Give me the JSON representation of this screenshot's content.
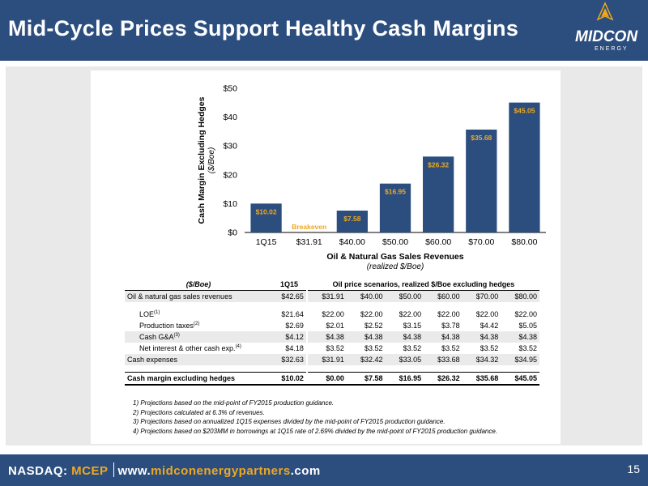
{
  "header": {
    "title": "Mid-Cycle Prices Support Healthy Cash Margins"
  },
  "logo": {
    "word": "MIDCON",
    "sub": "ENERGY"
  },
  "chart_data": {
    "type": "bar",
    "title": "",
    "ylabel": "Cash Margin Excluding Hedges",
    "ylabel_units": "($/Boe)",
    "xlabel": "Oil & Natural Gas Sales Revenues",
    "xlabel_units": "(realized $/Boe)",
    "categories": [
      "1Q15",
      "$31.91",
      "$40.00",
      "$50.00",
      "$60.00",
      "$70.00",
      "$80.00"
    ],
    "values": [
      10.02,
      0,
      7.58,
      16.95,
      26.32,
      35.68,
      45.05
    ],
    "value_labels": [
      "$10.02",
      "Breakeven",
      "$7.58",
      "$16.95",
      "$26.32",
      "$35.68",
      "$45.05"
    ],
    "ylim": [
      0,
      50
    ],
    "yticks": [
      "$0",
      "$10",
      "$20",
      "$30",
      "$40",
      "$50"
    ],
    "grid": false,
    "colors": {
      "bar": "#2c4e7f",
      "label": "#f0a81e"
    }
  },
  "table": {
    "col0_header": "($/Boe)",
    "col1_header": "1Q15",
    "scenario_header": "Oil price scenarios, realized $/Boe excluding hedges",
    "rows": [
      {
        "label": "Oil & natural gas sales revenues",
        "sup": "",
        "values": [
          "$42.65",
          "$31.91",
          "$40.00",
          "$50.00",
          "$60.00",
          "$70.00",
          "$80.00"
        ]
      },
      {
        "label": "LOE",
        "sup": "(1)",
        "values": [
          "$21.64",
          "$22.00",
          "$22.00",
          "$22.00",
          "$22.00",
          "$22.00",
          "$22.00"
        ]
      },
      {
        "label": "Production taxes",
        "sup": "(2)",
        "values": [
          "$2.69",
          "$2.01",
          "$2.52",
          "$3.15",
          "$3.78",
          "$4.42",
          "$5.05"
        ]
      },
      {
        "label": "Cash G&A",
        "sup": "(3)",
        "values": [
          "$4.12",
          "$4.38",
          "$4.38",
          "$4.38",
          "$4.38",
          "$4.38",
          "$4.38"
        ]
      },
      {
        "label": "Net interest & other cash exp.",
        "sup": "(4)",
        "values": [
          "$4.18",
          "$3.52",
          "$3.52",
          "$3.52",
          "$3.52",
          "$3.52",
          "$3.52"
        ]
      },
      {
        "label": "Cash expenses",
        "sup": "",
        "values": [
          "$32.63",
          "$31.91",
          "$32.42",
          "$33.05",
          "$33.68",
          "$34.32",
          "$34.95"
        ]
      },
      {
        "label": "Cash margin excluding hedges",
        "sup": "",
        "values": [
          "$10.02",
          "$0.00",
          "$7.58",
          "$16.95",
          "$26.32",
          "$35.68",
          "$45.05"
        ]
      }
    ]
  },
  "notes": [
    "1)  Projections based on the mid-point of FY2015 production guidance.",
    "2)  Projections calculated at 6.3% of revenues.",
    "3)  Projections based on annualized 1Q15 expenses divided by the mid-point of FY2015 production guidance.",
    "4)  Projections based on $203MM in borrowings at 1Q15 rate of 2.69% divided by the mid-point of FY2015 production guidance."
  ],
  "footer": {
    "nasdaq": "NASDAQ:",
    "ticker": "MCEP",
    "url_prefix": "www.",
    "url_accent": "midconenergypartners",
    "url_suffix": ".com",
    "page": "15"
  }
}
